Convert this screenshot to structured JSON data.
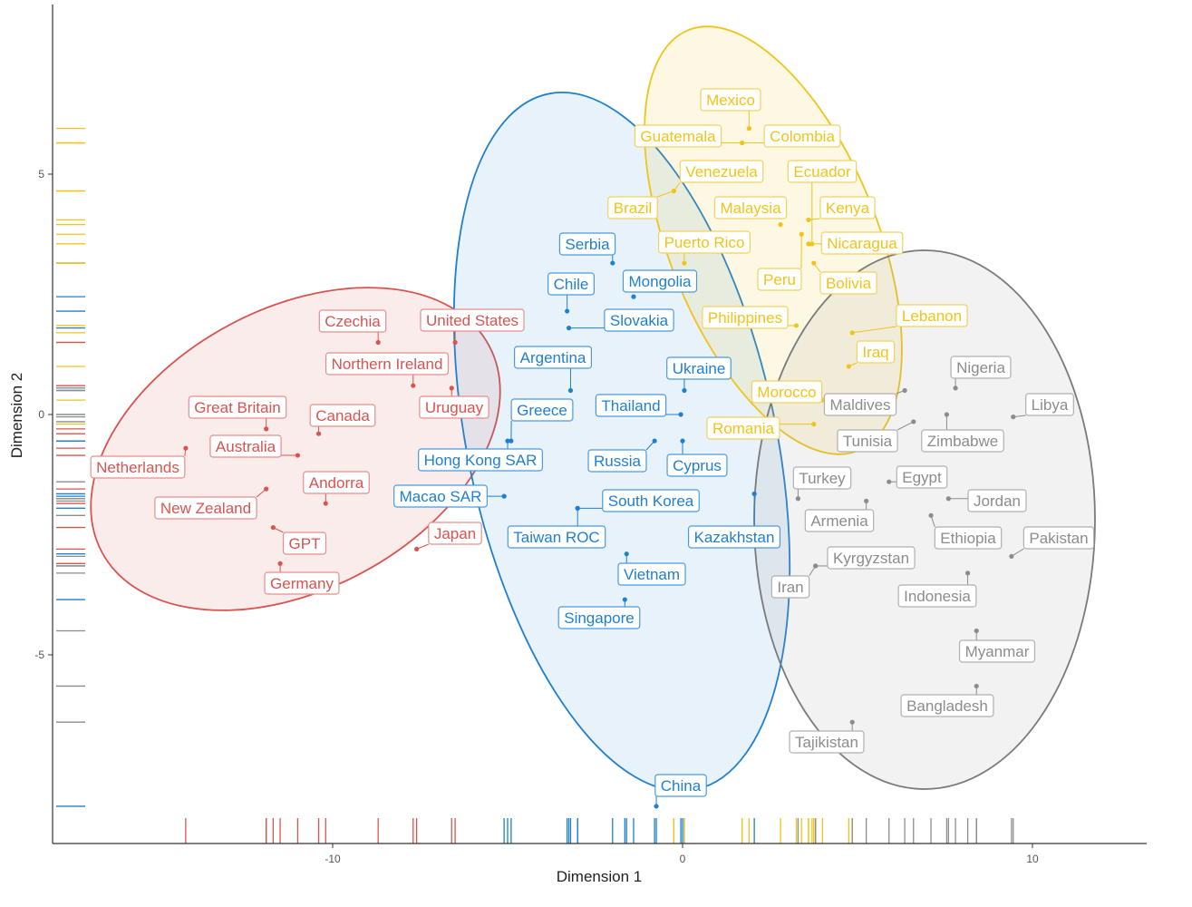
{
  "chart_data": {
    "type": "scatter",
    "xlabel": "Dimension 1",
    "ylabel": "Dimension 2",
    "xlim": [
      -18,
      13.5
    ],
    "ylim": [
      -8.8,
      8.7
    ],
    "x_ticks": [
      -10,
      0,
      10
    ],
    "x_tick_labels": [
      "-10",
      "0",
      "10"
    ],
    "y_ticks": [
      -5,
      0,
      5
    ],
    "y_tick_labels": [
      "-5",
      "0",
      "5"
    ],
    "grid": false,
    "rug": true,
    "colors": {
      "red": "#d9534f",
      "blue": "#1f7fd0",
      "yellow": "#f0c419",
      "gray": "#8c8c8c"
    },
    "series": [
      {
        "color": "red",
        "points": [
          {
            "label": "Czechia",
            "x": -8.7,
            "y": 1.5
          },
          {
            "label": "United States",
            "x": -6.5,
            "y": 1.5
          },
          {
            "label": "Northern Ireland",
            "x": -7.7,
            "y": 0.6
          },
          {
            "label": "Uruguay",
            "x": -6.6,
            "y": 0.55
          },
          {
            "label": "Great Britain",
            "x": -11.9,
            "y": -0.3
          },
          {
            "label": "Canada",
            "x": -10.4,
            "y": -0.4
          },
          {
            "label": "Australia",
            "x": -11.0,
            "y": -0.85
          },
          {
            "label": "Netherlands",
            "x": -14.2,
            "y": -0.7
          },
          {
            "label": "Andorra",
            "x": -10.2,
            "y": -1.85
          },
          {
            "label": "New Zealand",
            "x": -11.9,
            "y": -1.55
          },
          {
            "label": "GPT",
            "x": -11.7,
            "y": -2.35
          },
          {
            "label": "Germany",
            "x": -11.5,
            "y": -3.1
          },
          {
            "label": "Japan",
            "x": -7.6,
            "y": -2.8
          }
        ]
      },
      {
        "color": "blue",
        "points": [
          {
            "label": "Serbia",
            "x": -2.0,
            "y": 3.15
          },
          {
            "label": "Chile",
            "x": -3.3,
            "y": 2.15
          },
          {
            "label": "Mongolia",
            "x": -1.4,
            "y": 2.45
          },
          {
            "label": "Slovakia",
            "x": -3.25,
            "y": 1.8
          },
          {
            "label": "Argentina",
            "x": -3.2,
            "y": 0.5
          },
          {
            "label": "Ukraine",
            "x": 0.05,
            "y": 0.5
          },
          {
            "label": "Greece",
            "x": -4.9,
            "y": -0.55
          },
          {
            "label": "Thailand",
            "x": -0.05,
            "y": 0.0
          },
          {
            "label": "Hong Kong SAR",
            "x": -5.0,
            "y": -0.55
          },
          {
            "label": "Russia",
            "x": -0.8,
            "y": -0.55
          },
          {
            "label": "Cyprus",
            "x": 0.0,
            "y": -0.55
          },
          {
            "label": "Macao SAR",
            "x": -5.1,
            "y": -1.7
          },
          {
            "label": "South Korea",
            "x": -3.0,
            "y": -1.95
          },
          {
            "label": "Taiwan ROC",
            "x": -3.0,
            "y": -1.95
          },
          {
            "label": "Kazakhstan",
            "x": 2.05,
            "y": -1.65
          },
          {
            "label": "Vietnam",
            "x": -1.6,
            "y": -2.9
          },
          {
            "label": "Singapore",
            "x": -1.65,
            "y": -3.85
          },
          {
            "label": "China",
            "x": -0.75,
            "y": -8.15
          }
        ]
      },
      {
        "color": "yellow",
        "points": [
          {
            "label": "Mexico",
            "x": 1.9,
            "y": 5.95
          },
          {
            "label": "Guatemala",
            "x": 1.7,
            "y": 5.65
          },
          {
            "label": "Colombia",
            "x": 1.7,
            "y": 5.65
          },
          {
            "label": "Venezuela",
            "x": -0.25,
            "y": 4.65
          },
          {
            "label": "Ecuador",
            "x": 3.7,
            "y": 3.55
          },
          {
            "label": "Brazil",
            "x": -0.25,
            "y": 4.65
          },
          {
            "label": "Malaysia",
            "x": 2.8,
            "y": 3.95
          },
          {
            "label": "Kenya",
            "x": 3.6,
            "y": 4.05
          },
          {
            "label": "Puerto Rico",
            "x": 0.05,
            "y": 3.15
          },
          {
            "label": "Nicaragua",
            "x": 3.6,
            "y": 3.55
          },
          {
            "label": "Peru",
            "x": 3.4,
            "y": 3.75
          },
          {
            "label": "Bolivia",
            "x": 3.75,
            "y": 3.15
          },
          {
            "label": "Philippines",
            "x": 3.25,
            "y": 1.85
          },
          {
            "label": "Lebanon",
            "x": 4.85,
            "y": 1.7
          },
          {
            "label": "Iraq",
            "x": 4.75,
            "y": 1.0
          },
          {
            "label": "Morocco",
            "x": 4.0,
            "y": 0.3
          },
          {
            "label": "Romania",
            "x": 3.75,
            "y": -0.2
          }
        ]
      },
      {
        "color": "gray",
        "points": [
          {
            "label": "Nigeria",
            "x": 7.8,
            "y": 0.55
          },
          {
            "label": "Libya",
            "x": 9.45,
            "y": -0.05
          },
          {
            "label": "Maldives",
            "x": 6.35,
            "y": 0.5
          },
          {
            "label": "Tunisia",
            "x": 6.6,
            "y": -0.15
          },
          {
            "label": "Zimbabwe",
            "x": 7.55,
            "y": 0.0
          },
          {
            "label": "Turkey",
            "x": 3.3,
            "y": -1.75
          },
          {
            "label": "Egypt",
            "x": 5.9,
            "y": -1.4
          },
          {
            "label": "Armenia",
            "x": 5.25,
            "y": -1.8
          },
          {
            "label": "Jordan",
            "x": 7.6,
            "y": -1.75
          },
          {
            "label": "Ethiopia",
            "x": 7.1,
            "y": -2.1
          },
          {
            "label": "Pakistan",
            "x": 9.4,
            "y": -2.95
          },
          {
            "label": "Kyrgyzstan",
            "x": 3.8,
            "y": -3.15
          },
          {
            "label": "Iran",
            "x": 3.8,
            "y": -3.15
          },
          {
            "label": "Indonesia",
            "x": 8.15,
            "y": -3.3
          },
          {
            "label": "Myanmar",
            "x": 8.4,
            "y": -4.5
          },
          {
            "label": "Bangladesh",
            "x": 8.4,
            "y": -5.65
          },
          {
            "label": "Tajikistan",
            "x": 4.85,
            "y": -6.4
          }
        ]
      }
    ]
  }
}
